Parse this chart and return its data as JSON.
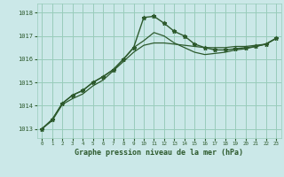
{
  "title": "Graphe pression niveau de la mer (hPa)",
  "background_color": "#cbe8e8",
  "grid_color": "#99ccbb",
  "line_color": "#2d5a2d",
  "x_ticks": [
    0,
    1,
    2,
    3,
    4,
    5,
    6,
    7,
    8,
    9,
    10,
    11,
    12,
    13,
    14,
    15,
    16,
    17,
    18,
    19,
    20,
    21,
    22,
    23
  ],
  "y_ticks": [
    1013,
    1014,
    1015,
    1016,
    1017,
    1018
  ],
  "ylim": [
    1012.6,
    1018.4
  ],
  "xlim": [
    -0.5,
    23.5
  ],
  "line1_x": [
    0,
    1,
    2,
    3,
    4,
    5,
    6,
    7,
    8,
    9,
    10,
    11,
    12,
    13,
    14,
    15,
    16,
    17,
    18,
    19,
    20,
    21,
    22,
    23
  ],
  "line1_y": [
    1013.0,
    1013.4,
    1014.1,
    1014.45,
    1014.65,
    1015.0,
    1015.25,
    1015.55,
    1016.0,
    1016.5,
    1017.8,
    1017.85,
    1017.55,
    1017.2,
    1017.0,
    1016.65,
    1016.5,
    1016.4,
    1016.4,
    1016.45,
    1016.5,
    1016.55,
    1016.65,
    1016.9
  ],
  "line2_x": [
    0,
    1,
    2,
    3,
    4,
    5,
    6,
    7,
    8,
    9,
    10,
    11,
    12,
    13,
    14,
    15,
    16,
    17,
    18,
    19,
    20,
    21,
    22,
    23
  ],
  "line2_y": [
    1013.0,
    1013.4,
    1014.1,
    1014.45,
    1014.65,
    1015.0,
    1015.25,
    1015.55,
    1016.0,
    1016.5,
    1016.8,
    1017.15,
    1017.0,
    1016.7,
    1016.5,
    1016.3,
    1016.2,
    1016.25,
    1016.3,
    1016.4,
    1016.45,
    1016.55,
    1016.65,
    1016.9
  ],
  "line3_x": [
    0,
    1,
    2,
    3,
    4,
    5,
    6,
    7,
    8,
    9,
    10,
    11,
    12,
    13,
    14,
    15,
    16,
    17,
    18,
    19,
    20,
    21,
    22,
    23
  ],
  "line3_y": [
    1013.0,
    1013.35,
    1014.05,
    1014.3,
    1014.5,
    1014.85,
    1015.1,
    1015.5,
    1015.9,
    1016.3,
    1016.6,
    1016.7,
    1016.7,
    1016.65,
    1016.6,
    1016.55,
    1016.5,
    1016.5,
    1016.5,
    1016.55,
    1016.55,
    1016.6,
    1016.65,
    1016.9
  ]
}
